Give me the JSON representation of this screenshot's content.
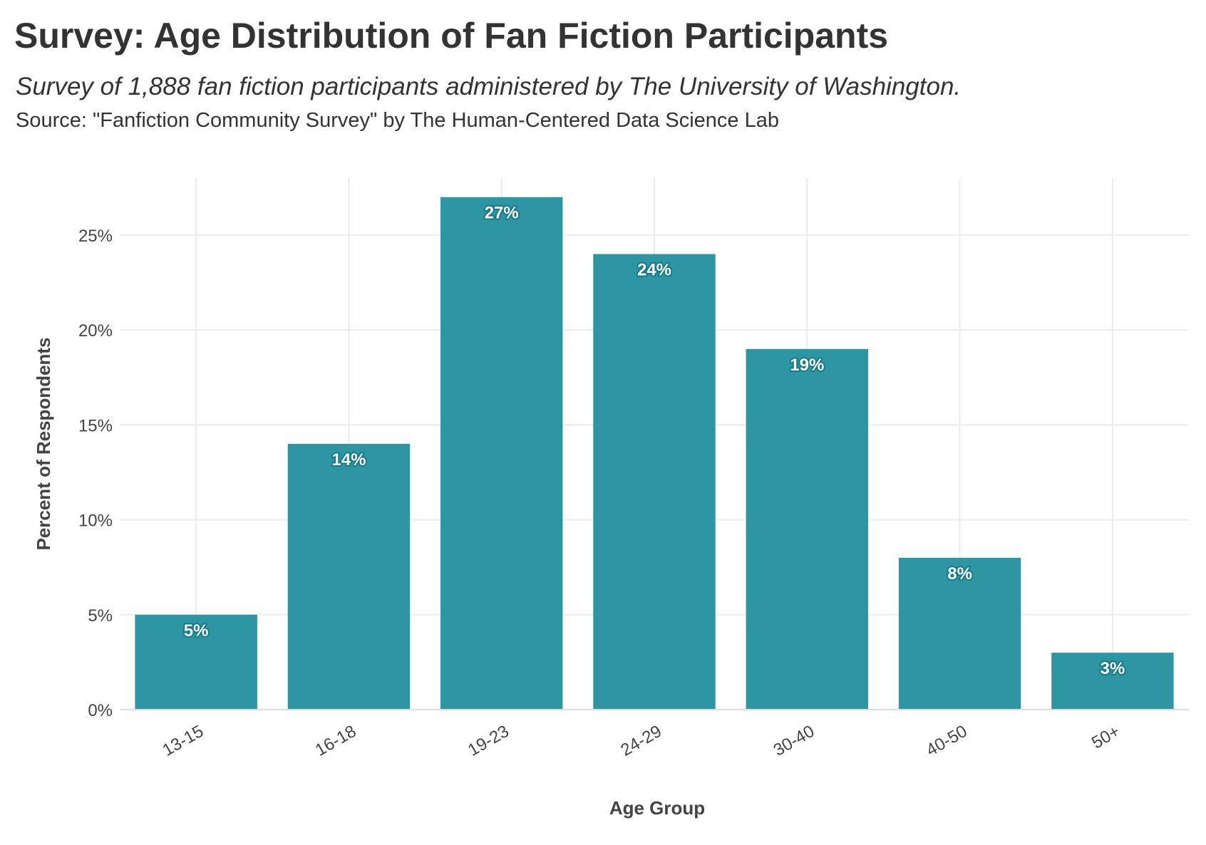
{
  "chart_data": {
    "type": "bar",
    "title": "Survey: Age Distribution of Fan Fiction Participants",
    "subtitle": "Survey of 1,888 fan fiction participants administered by The University of Washington.",
    "caption": "Source: \"Fanfiction Community Survey\" by The Human-Centered Data Science Lab",
    "xlabel": "Age Group",
    "ylabel": "Percent of Respondents",
    "categories": [
      "13-15",
      "16-18",
      "19-23",
      "24-29",
      "30-40",
      "40-50",
      "50+"
    ],
    "values": [
      5,
      14,
      27,
      24,
      19,
      8,
      3
    ],
    "value_labels": [
      "5%",
      "14%",
      "27%",
      "24%",
      "19%",
      "8%",
      "3%"
    ],
    "ylim": [
      0,
      28
    ],
    "yticks": [
      0,
      5,
      10,
      15,
      20,
      25
    ],
    "ytick_labels": [
      "0%",
      "5%",
      "10%",
      "15%",
      "20%",
      "25%"
    ],
    "grid": true,
    "legend": "none",
    "colors": {
      "bar": "#2e95a2",
      "label_outline": "#167a86",
      "gridline": "#ebebeb",
      "text": "#333333"
    }
  }
}
